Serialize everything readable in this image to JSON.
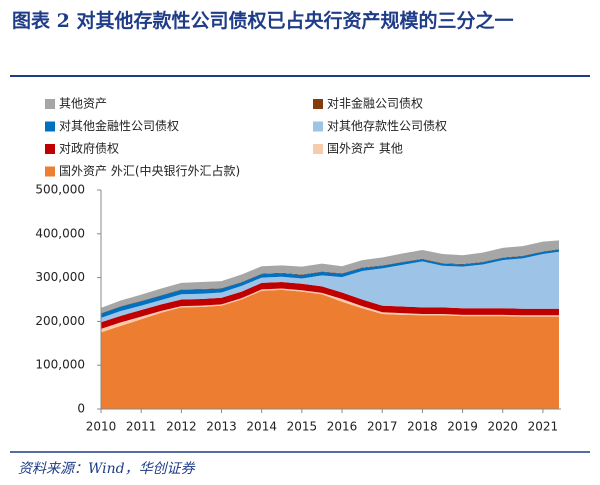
{
  "title": "图表 2   对其他存款性公司债权已占央行资产规模的三分之一",
  "source": "资料来源：Wind，华创证券",
  "chart_data": {
    "type": "stacked_area",
    "x": [
      2010,
      2010.5,
      2011,
      2011.5,
      2012,
      2012.5,
      2013,
      2013.5,
      2014,
      2014.5,
      2015,
      2015.5,
      2016,
      2016.5,
      2017,
      2017.5,
      2018,
      2018.5,
      2019,
      2019.5,
      2020,
      2020.5,
      2021,
      2021.4
    ],
    "series": [
      {
        "name": "国外资产 外汇(中央银行外汇占款)",
        "color": "#ed7d31",
        "values": [
          175000,
          190000,
          205000,
          220000,
          232000,
          233000,
          236000,
          250000,
          270000,
          272000,
          268000,
          262000,
          245000,
          230000,
          217000,
          215000,
          214000,
          214000,
          212000,
          212000,
          212000,
          211000,
          211000,
          211000
        ]
      },
      {
        "name": "国外资产 其他",
        "color": "#f8cbad",
        "values": [
          8000,
          8000,
          6000,
          4000,
          3000,
          3000,
          3000,
          3000,
          3000,
          3000,
          3000,
          3000,
          6000,
          5000,
          4000,
          4000,
          3000,
          3000,
          3000,
          3000,
          3000,
          3000,
          3000,
          3000
        ]
      },
      {
        "name": "对政府债权",
        "color": "#c00000",
        "values": [
          15000,
          15000,
          15000,
          15000,
          15000,
          15000,
          15000,
          15000,
          15000,
          15000,
          15000,
          15000,
          15000,
          15000,
          15000,
          15000,
          15000,
          15000,
          15000,
          15000,
          15000,
          15000,
          15000,
          15000
        ]
      },
      {
        "name": "对其他存款性公司债权",
        "color": "#9dc3e6",
        "values": [
          10000,
          11000,
          10000,
          10000,
          12000,
          12000,
          12000,
          13000,
          12000,
          12000,
          12000,
          25000,
          35000,
          65000,
          85000,
          95000,
          105000,
          95000,
          95000,
          100000,
          110000,
          115000,
          125000,
          130000
        ]
      },
      {
        "name": "对其他金融性公司债权",
        "color": "#0070c0",
        "values": [
          10000,
          10000,
          10000,
          10000,
          10000,
          10000,
          9000,
          8000,
          8000,
          8000,
          8000,
          8000,
          8000,
          7000,
          6000,
          6000,
          5000,
          5000,
          5000,
          5000,
          5000,
          5000,
          5000,
          5000
        ]
      },
      {
        "name": "对非金融公司债权",
        "color": "#843c0c",
        "values": [
          1000,
          1000,
          1000,
          1000,
          1000,
          1000,
          1000,
          1000,
          1000,
          1000,
          1000,
          1000,
          1000,
          1000,
          1000,
          1000,
          1000,
          1000,
          1000,
          1000,
          1000,
          1000,
          1000,
          1000
        ]
      },
      {
        "name": "其他资产",
        "color": "#a6a6a6",
        "values": [
          12000,
          13000,
          14000,
          15000,
          15000,
          16000,
          16000,
          17000,
          17000,
          17000,
          18000,
          18000,
          16000,
          17000,
          18000,
          19000,
          20000,
          21000,
          20000,
          21000,
          22000,
          22000,
          22000,
          20000
        ]
      }
    ],
    "xlim": [
      2010,
      2021.45
    ],
    "xticks": [
      2010,
      2011,
      2012,
      2013,
      2014,
      2015,
      2016,
      2017,
      2018,
      2019,
      2020,
      2021
    ],
    "ylim": [
      0,
      500000
    ],
    "yticks": [
      0,
      {
        "value": 100000,
        "label": "100,000"
      },
      {
        "value": 200000,
        "label": "200,000"
      },
      {
        "value": 300000,
        "label": "300,000"
      },
      {
        "value": 400000,
        "label": "400,000"
      },
      {
        "value": 500000,
        "label": "500,000"
      }
    ]
  }
}
